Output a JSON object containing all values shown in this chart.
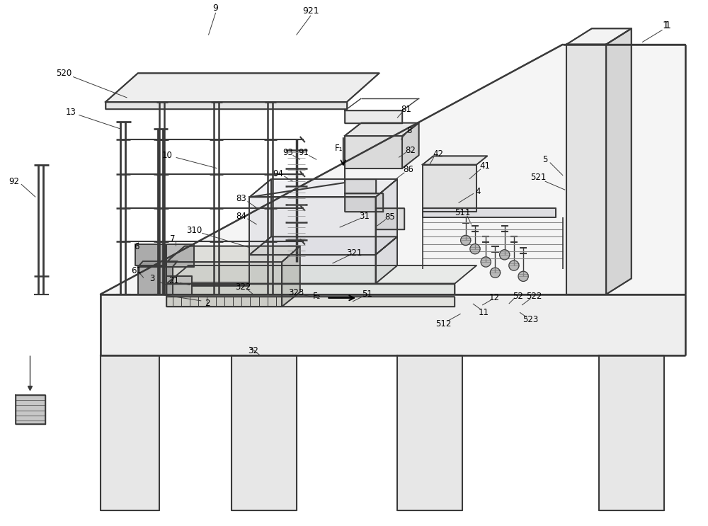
{
  "bg_color": "#ffffff",
  "lc": "#3a3a3a",
  "lw": 1.2,
  "fig_w": 10.0,
  "fig_h": 7.43,
  "dpi": 100
}
